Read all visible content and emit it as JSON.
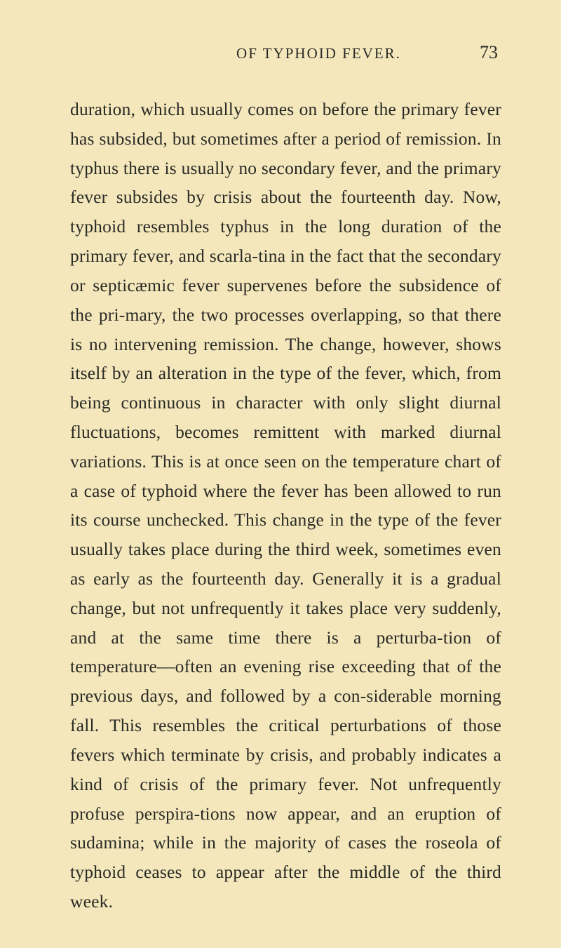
{
  "header": {
    "title": "OF TYPHOID FEVER.",
    "pageNumber": "73"
  },
  "body": {
    "text": "duration, which usually comes on before the primary fever has subsided, but sometimes after a period of remission. In typhus there is usually no secondary fever, and the primary fever subsides by crisis about the fourteenth day. Now, typhoid resembles typhus in the long duration of the primary fever, and scarla-tina in the fact that the secondary or septicæmic fever supervenes before the subsidence of the pri-mary, the two processes overlapping, so that there is no intervening remission. The change, however, shows itself by an alteration in the type of the fever, which, from being continuous in character with only slight diurnal fluctuations, becomes remittent with marked diurnal variations. This is at once seen on the temperature chart of a case of typhoid where the fever has been allowed to run its course unchecked. This change in the type of the fever usually takes place during the third week, sometimes even as early as the fourteenth day. Generally it is a gradual change, but not unfrequently it takes place very suddenly, and at the same time there is a perturba-tion of temperature—often an evening rise exceeding that of the previous days, and followed by a con-siderable morning fall. This resembles the critical perturbations of those fevers which terminate by crisis, and probably indicates a kind of crisis of the primary fever. Not unfrequently profuse perspira-tions now appear, and an eruption of sudamina; while in the majority of cases the roseola of typhoid ceases to appear after the middle of the third week."
  },
  "styles": {
    "backgroundColor": "#f3e7bb",
    "textColor": "#2a2a26",
    "bodyFontSize": 25.5,
    "headerFontSize": 21,
    "pageNumberFontSize": 26,
    "lineHeight": 1.64
  }
}
